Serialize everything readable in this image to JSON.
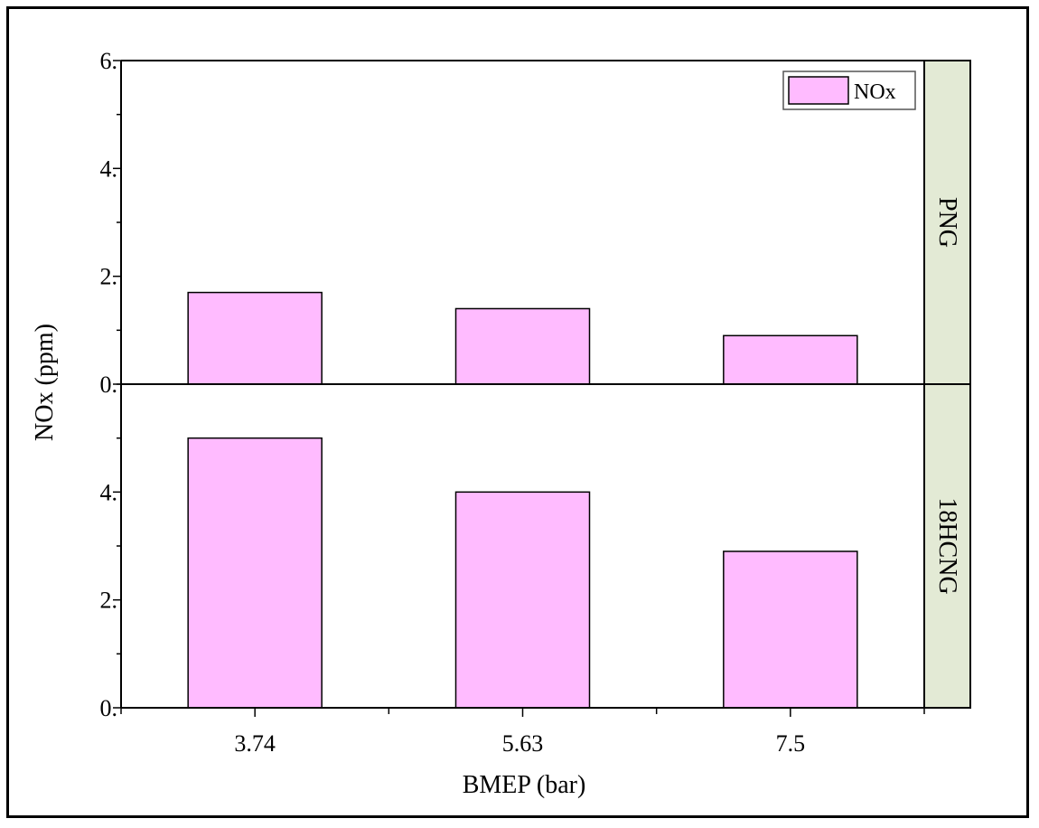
{
  "chart_data": {
    "type": "bar",
    "title": "",
    "xlabel": "BMEP (bar)",
    "ylabel": "NOx (ppm)",
    "categories": [
      "3.74",
      "5.63",
      "7.5"
    ],
    "panels": [
      {
        "name": "PNG",
        "ylim": [
          0,
          6
        ],
        "yticks": [
          0,
          2,
          4,
          6
        ],
        "ytick_labels": [
          "0.",
          "2.",
          "4.",
          "6."
        ],
        "series": [
          {
            "name": "NOx",
            "values": [
              1.7,
              1.4,
              0.9
            ]
          }
        ]
      },
      {
        "name": "18HCNG",
        "ylim": [
          0,
          6
        ],
        "yticks": [
          0,
          2,
          4
        ],
        "ytick_labels": [
          "0.",
          "2.",
          "4."
        ],
        "series": [
          {
            "name": "NOx",
            "values": [
              5.0,
              4.0,
              2.9
            ]
          }
        ]
      }
    ],
    "legend": {
      "entries": [
        "NOx"
      ],
      "position": "top-right"
    },
    "colors": {
      "bar_fill": "#FFBBFF",
      "bar_stroke": "#000000",
      "panel_strip": "#E3EAD5",
      "axis": "#000000"
    },
    "grid": false
  }
}
